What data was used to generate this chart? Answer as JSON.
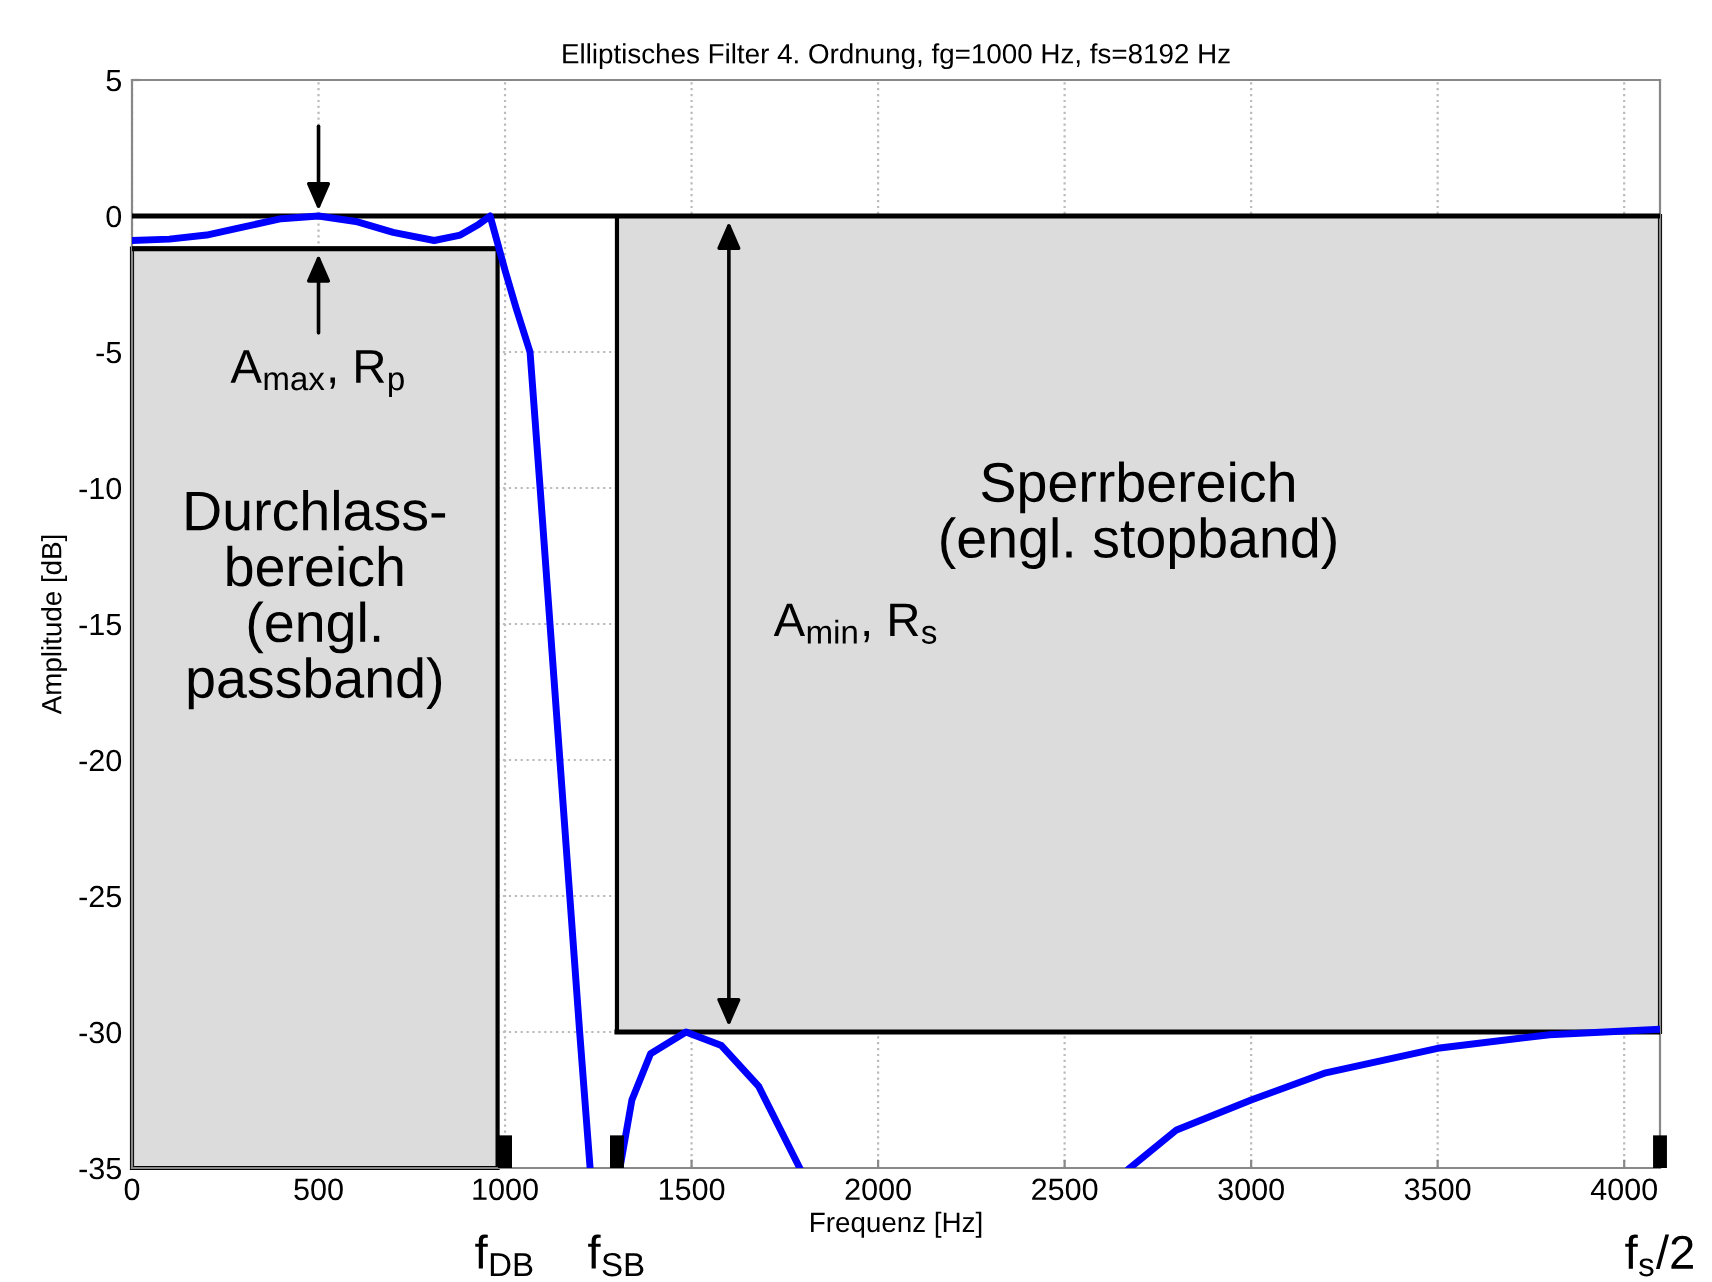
{
  "chart_data": {
    "type": "line",
    "title": "Elliptisches Filter 4. Ordnung, fg=1000 Hz, fs=8192 Hz",
    "xlabel": "Frequenz [Hz]",
    "ylabel": "Amplitude [dB]",
    "series": [
      {
        "color": "#0000ff",
        "x": [
          0,
          100,
          200,
          300,
          400,
          500,
          600,
          700,
          810,
          880,
          930,
          960,
          1000,
          1030,
          1067,
          1094,
          1147,
          1200,
          1228,
          1240,
          1245,
          1300,
          1308,
          1340,
          1390,
          1485,
          1580,
          1680,
          1790,
          1800,
          2500,
          2675,
          2800,
          3000,
          3200,
          3500,
          3800,
          4096
        ],
        "values": [
          -0.9,
          -0.85,
          -0.7,
          -0.4,
          -0.1,
          0,
          -0.2,
          -0.6,
          -0.9,
          -0.7,
          -0.3,
          0,
          -2,
          -3.4,
          -5,
          -10,
          -20,
          -30,
          -35,
          null,
          null,
          null,
          -35,
          -32.5,
          -30.8,
          -30,
          -30.5,
          -32,
          -35,
          null,
          null,
          -35,
          -33.6,
          -32.5,
          -31.5,
          -30.6,
          -30.1,
          -29.9
        ]
      }
    ],
    "xlim": [
      0,
      4096
    ],
    "ylim": [
      -35,
      5
    ],
    "xticks": [
      0,
      500,
      1000,
      1500,
      2000,
      2500,
      3000,
      3500,
      4000
    ],
    "yticks": [
      -35,
      -30,
      -25,
      -20,
      -15,
      -10,
      -5,
      0,
      5
    ],
    "grid": true,
    "line_style": "solid",
    "marker": "none",
    "ref_lines": [
      {
        "axis": "y",
        "value": 0,
        "color": "#000000"
      },
      {
        "axis": "y",
        "value": -1.2,
        "color": "#000000"
      },
      {
        "axis": "y",
        "value": -30,
        "color": "#000000"
      }
    ],
    "bands": [
      {
        "axis": "x",
        "from": 0,
        "to": 980,
        "label": "Durchlass-\nbereich\n(engl.\npassband)",
        "color": "#dcdcdc"
      },
      {
        "axis": "x",
        "from": 1300,
        "to": 4096,
        "label": "Sperrbereich\n(engl. stopband)",
        "color": "#dcdcdc"
      }
    ],
    "annotations": [
      {
        "text": "A$_{max}$, R$_{p}$",
        "x": 500,
        "y": -1.2
      },
      "A$_{min}$, R$_{s}$",
      {
        "text": "f$_{DB}$",
        "x": 1000,
        "y": -35
      },
      {
        "text": "f$_{SB}$",
        "x": 1300,
        "y": -35
      },
      "f$_{s}$/2"
    ]
  }
}
